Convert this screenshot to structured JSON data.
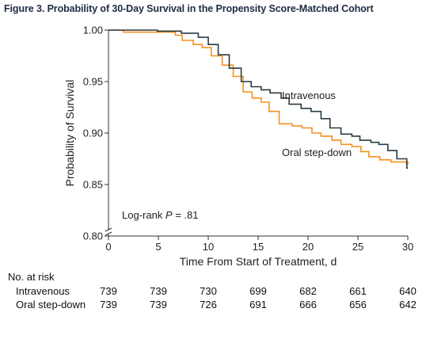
{
  "figure": {
    "title": "Figure 3. Probability of 30-Day Survival in the Propensity Score-Matched Cohort"
  },
  "chart_data": {
    "type": "line",
    "subtype": "step",
    "xlabel": "Time From Start of Treatment, d",
    "ylabel": "Probability of Survival",
    "xlim": [
      0,
      30
    ],
    "ylim": [
      0.8,
      1.0
    ],
    "xticks": [
      0,
      5,
      10,
      15,
      20,
      25,
      30
    ],
    "yticks": [
      0.8,
      0.85,
      0.9,
      0.95,
      1.0
    ],
    "xtick_labels": [
      "0",
      "5",
      "10",
      "15",
      "20",
      "25",
      "30"
    ],
    "ytick_labels": [
      "0.80",
      "0.85",
      "0.90",
      "0.95",
      "1.00"
    ],
    "y_axis_break": true,
    "grid": false,
    "legend": "direct labels",
    "series": [
      {
        "name": "Intravenous",
        "color": "#2b3a42",
        "x": [
          0,
          4.9,
          7.3,
          9.0,
          10.0,
          11.0,
          12.1,
          13.3,
          14.3,
          15.3,
          16.2,
          17.3,
          18.1,
          19.3,
          20.3,
          21.3,
          22.2,
          23.3,
          24.4,
          25.2,
          26.3,
          27.1,
          28.0,
          28.9,
          29.9,
          30
        ],
        "y": [
          1.0,
          0.999,
          0.997,
          0.993,
          0.986,
          0.976,
          0.963,
          0.95,
          0.945,
          0.942,
          0.939,
          0.934,
          0.928,
          0.924,
          0.921,
          0.914,
          0.905,
          0.899,
          0.897,
          0.893,
          0.891,
          0.889,
          0.883,
          0.875,
          0.866,
          0.866
        ]
      },
      {
        "name": "Oral step-down",
        "color": "#f5901f",
        "x": [
          0,
          1.5,
          6.7,
          7.4,
          8.5,
          9.4,
          10.3,
          11.4,
          12.5,
          13.5,
          14.4,
          15.3,
          16.1,
          17.1,
          18.4,
          19.4,
          20.4,
          21.3,
          22.4,
          23.3,
          24.4,
          25.3,
          26.1,
          27.2,
          28.3,
          30
        ],
        "y": [
          1.0,
          0.998,
          0.995,
          0.99,
          0.986,
          0.983,
          0.975,
          0.966,
          0.955,
          0.94,
          0.934,
          0.93,
          0.921,
          0.909,
          0.907,
          0.905,
          0.9,
          0.897,
          0.893,
          0.889,
          0.887,
          0.882,
          0.877,
          0.874,
          0.872,
          0.869
        ]
      }
    ],
    "annotations": {
      "intravenous_label": "Intravenous",
      "oral_label": "Oral step-down",
      "logrank_prefix": "Log-rank ",
      "logrank_p": "P",
      "logrank_value": " = .81"
    }
  },
  "risk_table": {
    "title": "No. at risk",
    "timepoints": [
      0,
      5,
      10,
      15,
      20,
      25,
      30
    ],
    "rows": [
      {
        "label": "Intravenous",
        "values": [
          "739",
          "739",
          "730",
          "699",
          "682",
          "661",
          "640"
        ]
      },
      {
        "label": "Oral step-down",
        "values": [
          "739",
          "739",
          "726",
          "691",
          "666",
          "656",
          "642"
        ]
      }
    ]
  }
}
